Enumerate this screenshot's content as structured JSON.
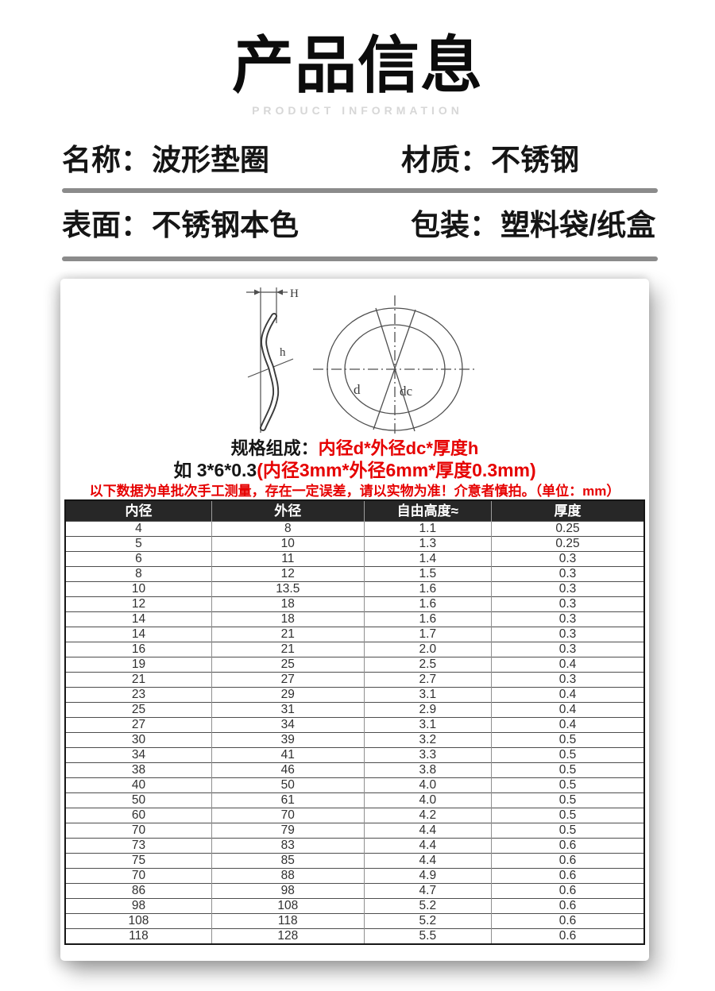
{
  "page": {
    "title": "产品信息",
    "subtitle": "PRODUCT INFORMATION"
  },
  "info": {
    "fields": [
      {
        "label": "名称：",
        "value": "波形垫圈"
      },
      {
        "label": "材质：",
        "value": "不锈钢"
      },
      {
        "label": "表面：",
        "value": "不锈钢本色"
      },
      {
        "label": "包装：",
        "value": "塑料袋/纸盒"
      }
    ]
  },
  "diagram": {
    "labels": {
      "total_height": "H",
      "free_height": "h",
      "inner_diameter": "d",
      "outer_diameter": "dc"
    }
  },
  "spec": {
    "line1_black": "规格组成：",
    "line1_red": "内径d*外径dc*厚度h",
    "line2_black": "如 3*6*0.3",
    "line2_red": "(内径3mm*外径6mm*厚度0.3mm)",
    "note_red": "以下数据为单批次手工测量，存在一定误差，请以实物为准！介意者慎拍。（单位：mm）"
  },
  "table": {
    "columns": [
      "内径",
      "外径",
      "自由高度≈",
      "厚度"
    ],
    "rows": [
      [
        "4",
        "8",
        "1.1",
        "0.25"
      ],
      [
        "5",
        "10",
        "1.3",
        "0.25"
      ],
      [
        "6",
        "11",
        "1.4",
        "0.3"
      ],
      [
        "8",
        "12",
        "1.5",
        "0.3"
      ],
      [
        "10",
        "13.5",
        "1.6",
        "0.3"
      ],
      [
        "12",
        "18",
        "1.6",
        "0.3"
      ],
      [
        "14",
        "18",
        "1.6",
        "0.3"
      ],
      [
        "14",
        "21",
        "1.7",
        "0.3"
      ],
      [
        "16",
        "21",
        "2.0",
        "0.3"
      ],
      [
        "19",
        "25",
        "2.5",
        "0.4"
      ],
      [
        "21",
        "27",
        "2.7",
        "0.3"
      ],
      [
        "23",
        "29",
        "3.1",
        "0.4"
      ],
      [
        "25",
        "31",
        "2.9",
        "0.4"
      ],
      [
        "27",
        "34",
        "3.1",
        "0.4"
      ],
      [
        "30",
        "39",
        "3.2",
        "0.5"
      ],
      [
        "34",
        "41",
        "3.3",
        "0.5"
      ],
      [
        "38",
        "46",
        "3.8",
        "0.5"
      ],
      [
        "40",
        "50",
        "4.0",
        "0.5"
      ],
      [
        "50",
        "61",
        "4.0",
        "0.5"
      ],
      [
        "60",
        "70",
        "4.2",
        "0.5"
      ],
      [
        "70",
        "79",
        "4.4",
        "0.5"
      ],
      [
        "73",
        "83",
        "4.4",
        "0.6"
      ],
      [
        "75",
        "85",
        "4.4",
        "0.6"
      ],
      [
        "70",
        "88",
        "4.9",
        "0.6"
      ],
      [
        "86",
        "98",
        "4.7",
        "0.6"
      ],
      [
        "98",
        "108",
        "5.2",
        "0.6"
      ],
      [
        "108",
        "118",
        "5.2",
        "0.6"
      ],
      [
        "118",
        "128",
        "5.5",
        "0.6"
      ]
    ]
  },
  "colors": {
    "accent_red": "#e60000",
    "divider_gray": "#8b8b8b",
    "table_header_bg": "#272727",
    "table_header_text": "#ffffff"
  }
}
